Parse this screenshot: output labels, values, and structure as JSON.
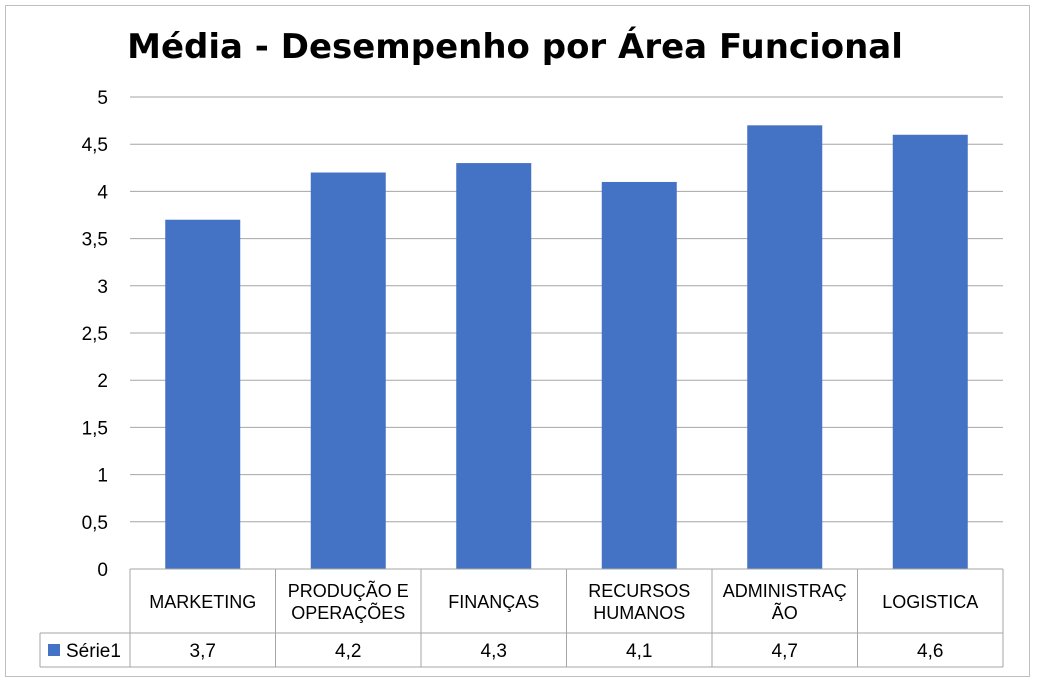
{
  "chart_data": {
    "type": "bar",
    "title": "Média - Desempenho por Área Funcional",
    "categories": [
      "MARKETING",
      "PRODUÇÃO E OPERAÇÕES",
      "FINANÇAS",
      "RECURSOS HUMANOS",
      "ADMINISTRAÇÃO",
      "LOGISTICA"
    ],
    "category_label_lines": [
      [
        "MARKETING"
      ],
      [
        "PRODUÇÃO E",
        "OPERAÇÕES"
      ],
      [
        "FINANÇAS"
      ],
      [
        "RECURSOS",
        "HUMANOS"
      ],
      [
        "ADMINISTRAÇ",
        "ÃO"
      ],
      [
        "LOGISTICA"
      ]
    ],
    "series": [
      {
        "name": "Série1",
        "values": [
          3.7,
          4.2,
          4.3,
          4.1,
          4.7,
          4.6
        ],
        "value_labels": [
          "3,7",
          "4,2",
          "4,3",
          "4,1",
          "4,7",
          "4,6"
        ]
      }
    ],
    "ylim": [
      0,
      5
    ],
    "yticks": [
      0,
      0.5,
      1,
      1.5,
      2,
      2.5,
      3,
      3.5,
      4,
      4.5,
      5
    ],
    "ytick_labels": [
      "0",
      "0,5",
      "1",
      "1,5",
      "2",
      "2,5",
      "3",
      "3,5",
      "4",
      "4,5",
      "5"
    ],
    "grid": true,
    "data_table": true,
    "colors": {
      "bar": "#4472c4",
      "grid": "#a6a6a6",
      "table_border": "#a6a6a6"
    }
  }
}
